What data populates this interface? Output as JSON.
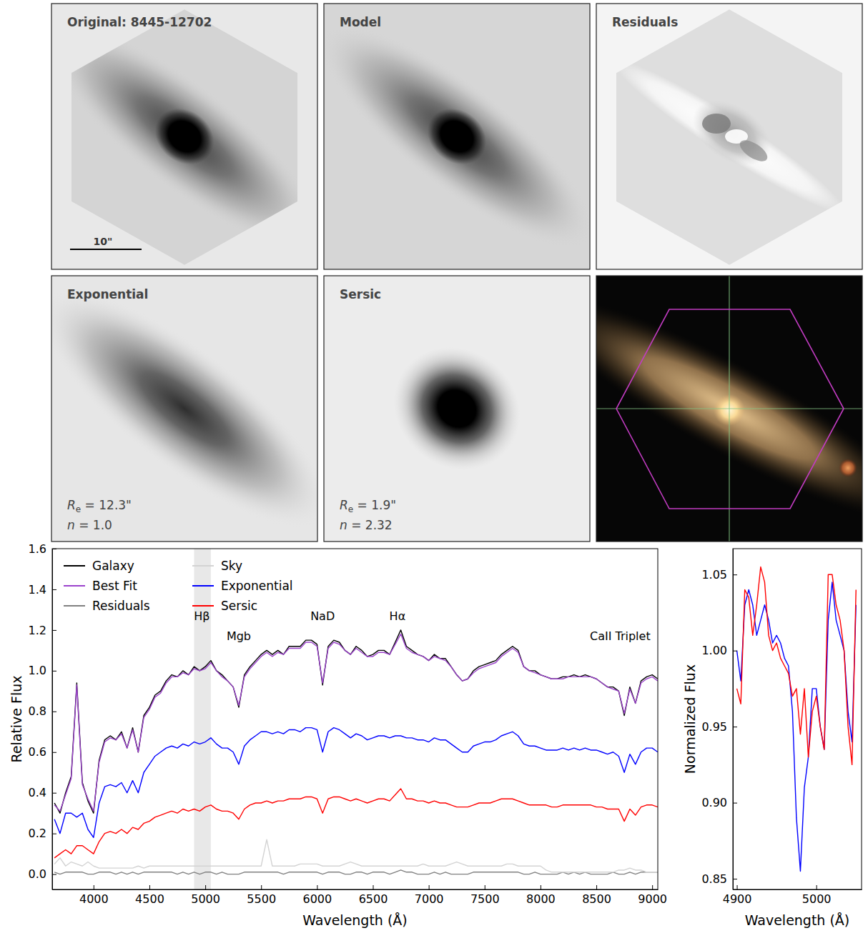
{
  "chart_data": [
    {
      "type": "image",
      "title": "Original: 8445-12702",
      "scale_bar": {
        "label": "10\""
      }
    },
    {
      "type": "image",
      "title": "Model"
    },
    {
      "type": "image",
      "title": "Residuals"
    },
    {
      "type": "image",
      "title": "Exponential",
      "annotations": [
        "Re = 12.3\"",
        "n = 1.0"
      ]
    },
    {
      "type": "image",
      "title": "Sersic",
      "annotations": [
        "Re = 1.9\"",
        "n = 2.32"
      ]
    },
    {
      "type": "image"
    },
    {
      "type": "line",
      "x_label": "Wavelength (Å)",
      "y_label": "Relative Flux",
      "xlim": [
        3630,
        9050
      ],
      "ylim": [
        -0.075,
        1.6
      ],
      "xticks": [
        4000,
        4500,
        5000,
        5500,
        6000,
        6500,
        7000,
        7500,
        8000,
        8500,
        9000
      ],
      "yticks": [
        {
          "value": 0,
          "label": "0.0"
        },
        0.2,
        0.4,
        0.6,
        0.8,
        {
          "value": 1,
          "label": "1.0"
        },
        1.2,
        1.4,
        1.6
      ],
      "legend": "upper left",
      "highlight": [
        4900,
        5050
      ],
      "annotations": [
        {
          "text": "Hβ",
          "x": 4970,
          "y": 1.27
        },
        {
          "text": "Mgb",
          "x": 5300,
          "y": 1.17
        },
        {
          "text": "NaD",
          "x": 6050,
          "y": 1.27
        },
        {
          "text": "Hα",
          "x": 6720,
          "y": 1.27
        },
        {
          "text": "CaII Triplet",
          "x": 8713,
          "y": 1.17
        }
      ],
      "x": [
        3650,
        3700,
        3750,
        3800,
        3850,
        3900,
        3950,
        4000,
        4050,
        4100,
        4150,
        4200,
        4250,
        4300,
        4350,
        4400,
        4450,
        4500,
        4550,
        4600,
        4650,
        4700,
        4750,
        4800,
        4850,
        4900,
        4950,
        5000,
        5050,
        5100,
        5150,
        5200,
        5250,
        5300,
        5350,
        5400,
        5450,
        5500,
        5550,
        5600,
        5650,
        5700,
        5750,
        5800,
        5850,
        5900,
        5950,
        6000,
        6050,
        6100,
        6150,
        6200,
        6250,
        6300,
        6350,
        6400,
        6450,
        6500,
        6550,
        6600,
        6650,
        6700,
        6750,
        6800,
        6850,
        6900,
        6950,
        7000,
        7050,
        7100,
        7150,
        7200,
        7250,
        7300,
        7350,
        7400,
        7450,
        7500,
        7550,
        7600,
        7650,
        7700,
        7750,
        7800,
        7850,
        7900,
        7950,
        8000,
        8050,
        8100,
        8150,
        8200,
        8250,
        8300,
        8350,
        8400,
        8450,
        8500,
        8550,
        8600,
        8650,
        8700,
        8750,
        8800,
        8850,
        8900,
        8950,
        9000,
        9050
      ],
      "series": [
        {
          "name": "Galaxy",
          "color": "#000000",
          "values": [
            0.35,
            0.3,
            0.4,
            0.48,
            0.94,
            0.45,
            0.36,
            0.3,
            0.56,
            0.66,
            0.68,
            0.66,
            0.7,
            0.62,
            0.72,
            0.6,
            0.78,
            0.82,
            0.88,
            0.9,
            0.95,
            0.98,
            0.97,
            1.0,
            0.98,
            1.02,
            1.0,
            1.02,
            1.05,
            1.0,
            0.98,
            0.95,
            0.92,
            0.82,
            0.98,
            1.02,
            1.05,
            1.08,
            1.1,
            1.08,
            1.1,
            1.08,
            1.12,
            1.12,
            1.12,
            1.15,
            1.15,
            1.13,
            0.93,
            1.12,
            1.15,
            1.14,
            1.1,
            1.08,
            1.12,
            1.1,
            1.07,
            1.08,
            1.1,
            1.1,
            1.08,
            1.14,
            1.2,
            1.12,
            1.1,
            1.08,
            1.07,
            1.05,
            1.08,
            1.06,
            1.06,
            1.02,
            0.98,
            0.95,
            0.96,
            1.0,
            1.02,
            1.03,
            1.04,
            1.05,
            1.08,
            1.1,
            1.12,
            1.1,
            1.02,
            1.0,
            1.0,
            0.98,
            0.97,
            0.96,
            0.96,
            0.97,
            0.97,
            0.98,
            0.97,
            0.98,
            0.97,
            0.96,
            0.94,
            0.92,
            0.92,
            0.9,
            0.78,
            0.92,
            0.84,
            0.95,
            0.97,
            0.98,
            0.96
          ]
        },
        {
          "name": "Best Fit",
          "color": "#9b42cc",
          "values": [
            0.34,
            0.31,
            0.39,
            0.47,
            0.93,
            0.44,
            0.37,
            0.31,
            0.55,
            0.65,
            0.67,
            0.66,
            0.69,
            0.62,
            0.71,
            0.6,
            0.77,
            0.81,
            0.87,
            0.89,
            0.94,
            0.97,
            0.97,
            0.99,
            0.98,
            1.01,
            1.0,
            1.01,
            1.04,
            1.0,
            0.97,
            0.95,
            0.92,
            0.83,
            0.97,
            1.01,
            1.04,
            1.07,
            1.09,
            1.07,
            1.09,
            1.08,
            1.11,
            1.11,
            1.11,
            1.14,
            1.14,
            1.12,
            0.94,
            1.11,
            1.14,
            1.13,
            1.1,
            1.08,
            1.11,
            1.09,
            1.07,
            1.07,
            1.09,
            1.09,
            1.08,
            1.13,
            1.18,
            1.11,
            1.09,
            1.08,
            1.07,
            1.05,
            1.07,
            1.06,
            1.05,
            1.02,
            0.98,
            0.95,
            0.96,
            0.99,
            1.01,
            1.02,
            1.03,
            1.04,
            1.07,
            1.09,
            1.11,
            1.09,
            1.02,
            1.0,
            0.99,
            0.98,
            0.97,
            0.96,
            0.96,
            0.96,
            0.97,
            0.97,
            0.97,
            0.97,
            0.97,
            0.96,
            0.94,
            0.92,
            0.91,
            0.9,
            0.79,
            0.91,
            0.84,
            0.94,
            0.96,
            0.97,
            0.95
          ]
        },
        {
          "name": "Residuals",
          "color": "#808080",
          "values": [
            0.01,
            0.0,
            0.01,
            0.01,
            0.01,
            0.01,
            0.0,
            0.0,
            0.01,
            0.01,
            0.01,
            0.0,
            0.01,
            0.0,
            0.01,
            0.0,
            0.01,
            0.01,
            0.01,
            0.01,
            0.01,
            0.01,
            0.0,
            0.01,
            0.0,
            0.01,
            0.0,
            0.01,
            0.01,
            0.0,
            0.01,
            0.0,
            0.0,
            0.0,
            0.01,
            0.01,
            0.01,
            0.01,
            0.01,
            0.01,
            0.01,
            0.0,
            0.01,
            0.01,
            0.01,
            0.01,
            0.01,
            0.01,
            0.0,
            0.01,
            0.01,
            0.01,
            0.0,
            0.0,
            0.01,
            0.01,
            0.0,
            0.01,
            0.01,
            0.01,
            0.0,
            0.01,
            0.02,
            0.01,
            0.01,
            0.0,
            0.0,
            0.0,
            0.01,
            0.0,
            0.01,
            0.0,
            0.0,
            0.0,
            0.0,
            0.01,
            0.01,
            0.01,
            0.01,
            0.01,
            0.01,
            0.01,
            0.01,
            0.01,
            0.0,
            0.0,
            0.01,
            0.0,
            0.0,
            0.0,
            0.0,
            0.01,
            0.0,
            0.01,
            0.0,
            0.01,
            0.0,
            0.0,
            0.0,
            0.0,
            0.01,
            0.0,
            0.0,
            0.01,
            0.0,
            0.01,
            0.01,
            0.01,
            0.01
          ]
        },
        {
          "name": "Sky",
          "color": "#d3d3d3",
          "values": [
            0.05,
            0.08,
            0.04,
            0.06,
            0.05,
            0.04,
            0.06,
            0.04,
            0.03,
            0.03,
            0.03,
            0.03,
            0.03,
            0.03,
            0.03,
            0.04,
            0.03,
            0.04,
            0.04,
            0.04,
            0.04,
            0.04,
            0.04,
            0.04,
            0.04,
            0.04,
            0.04,
            0.04,
            0.04,
            0.04,
            0.04,
            0.04,
            0.04,
            0.04,
            0.04,
            0.04,
            0.04,
            0.04,
            0.17,
            0.04,
            0.04,
            0.04,
            0.04,
            0.04,
            0.05,
            0.05,
            0.05,
            0.05,
            0.04,
            0.04,
            0.04,
            0.04,
            0.05,
            0.06,
            0.05,
            0.04,
            0.04,
            0.04,
            0.04,
            0.04,
            0.04,
            0.04,
            0.04,
            0.04,
            0.04,
            0.04,
            0.05,
            0.04,
            0.04,
            0.04,
            0.04,
            0.05,
            0.06,
            0.05,
            0.04,
            0.04,
            0.04,
            0.04,
            0.04,
            0.04,
            0.04,
            0.05,
            0.05,
            0.04,
            0.04,
            0.04,
            0.04,
            0.04,
            0.02,
            0.01,
            0.01,
            0.01,
            0.01,
            0.01,
            0.01,
            0.01,
            0.01,
            0.01,
            0.01,
            0.01,
            0.01,
            0.02,
            0.02,
            0.03,
            0.02,
            0.02,
            0.01,
            0.01,
            0.01
          ]
        },
        {
          "name": "Exponential",
          "color": "#0000ff",
          "values": [
            0.27,
            0.2,
            0.3,
            0.3,
            0.28,
            0.3,
            0.22,
            0.18,
            0.35,
            0.43,
            0.44,
            0.43,
            0.45,
            0.4,
            0.46,
            0.4,
            0.5,
            0.54,
            0.58,
            0.6,
            0.62,
            0.63,
            0.62,
            0.64,
            0.63,
            0.65,
            0.64,
            0.65,
            0.67,
            0.64,
            0.62,
            0.62,
            0.6,
            0.54,
            0.63,
            0.66,
            0.68,
            0.7,
            0.7,
            0.69,
            0.7,
            0.69,
            0.71,
            0.71,
            0.7,
            0.72,
            0.72,
            0.71,
            0.6,
            0.7,
            0.72,
            0.71,
            0.69,
            0.67,
            0.69,
            0.68,
            0.66,
            0.67,
            0.68,
            0.68,
            0.67,
            0.68,
            0.68,
            0.67,
            0.67,
            0.66,
            0.66,
            0.65,
            0.67,
            0.66,
            0.66,
            0.64,
            0.62,
            0.6,
            0.6,
            0.63,
            0.64,
            0.65,
            0.65,
            0.66,
            0.68,
            0.69,
            0.7,
            0.68,
            0.64,
            0.63,
            0.63,
            0.62,
            0.61,
            0.61,
            0.61,
            0.62,
            0.61,
            0.62,
            0.61,
            0.62,
            0.61,
            0.61,
            0.6,
            0.59,
            0.6,
            0.58,
            0.5,
            0.59,
            0.54,
            0.6,
            0.62,
            0.62,
            0.6
          ]
        },
        {
          "name": "Sersic",
          "color": "#ff0000",
          "values": [
            0.08,
            0.1,
            0.12,
            0.1,
            0.14,
            0.14,
            0.12,
            0.1,
            0.16,
            0.2,
            0.21,
            0.2,
            0.22,
            0.2,
            0.23,
            0.22,
            0.25,
            0.26,
            0.28,
            0.29,
            0.3,
            0.31,
            0.3,
            0.32,
            0.31,
            0.32,
            0.31,
            0.33,
            0.34,
            0.32,
            0.31,
            0.31,
            0.3,
            0.27,
            0.32,
            0.34,
            0.35,
            0.35,
            0.36,
            0.35,
            0.36,
            0.36,
            0.37,
            0.37,
            0.37,
            0.38,
            0.38,
            0.37,
            0.3,
            0.37,
            0.38,
            0.38,
            0.37,
            0.36,
            0.37,
            0.36,
            0.35,
            0.36,
            0.37,
            0.37,
            0.36,
            0.39,
            0.42,
            0.37,
            0.37,
            0.36,
            0.36,
            0.35,
            0.36,
            0.35,
            0.35,
            0.34,
            0.33,
            0.33,
            0.33,
            0.34,
            0.35,
            0.35,
            0.35,
            0.36,
            0.37,
            0.37,
            0.37,
            0.36,
            0.35,
            0.34,
            0.34,
            0.34,
            0.34,
            0.33,
            0.33,
            0.34,
            0.34,
            0.34,
            0.34,
            0.34,
            0.34,
            0.33,
            0.33,
            0.32,
            0.32,
            0.32,
            0.26,
            0.32,
            0.29,
            0.33,
            0.34,
            0.34,
            0.33
          ]
        }
      ]
    },
    {
      "type": "line",
      "x_label": "Wavelength (Å)",
      "y_label": "Normalized Flux",
      "xlim": [
        4895,
        5057
      ],
      "ylim": [
        0.843,
        1.067
      ],
      "xticks": [
        4900,
        5000
      ],
      "yticks": [
        0.85,
        {
          "value": 0.9,
          "label": "0.90"
        },
        0.95,
        {
          "value": 1,
          "label": "1.00"
        },
        1.05
      ],
      "x": [
        4900,
        4905,
        4910,
        4915,
        4920,
        4925,
        4930,
        4935,
        4940,
        4945,
        4950,
        4955,
        4960,
        4965,
        4970,
        4975,
        4980,
        4985,
        4990,
        4995,
        5000,
        5005,
        5010,
        5015,
        5020,
        5025,
        5030,
        5035,
        5040,
        5045,
        5050
      ],
      "series": [
        {
          "color": "#0000ff",
          "values": [
            1.0,
            0.98,
            1.03,
            1.04,
            1.03,
            1.01,
            1.02,
            1.03,
            1.02,
            1.005,
            1.01,
            1.005,
            0.995,
            0.99,
            0.96,
            0.89,
            0.855,
            0.91,
            0.93,
            0.975,
            0.975,
            0.95,
            0.935,
            1.02,
            1.045,
            1.02,
            1.01,
            1.0,
            0.96,
            0.94,
            1.03
          ]
        },
        {
          "color": "#ff0000",
          "values": [
            0.975,
            0.965,
            1.04,
            1.035,
            1.01,
            1.03,
            1.055,
            1.045,
            1.01,
            1.0,
            1.005,
            0.995,
            0.99,
            0.985,
            0.97,
            0.975,
            0.945,
            0.975,
            0.93,
            0.96,
            0.97,
            0.95,
            0.935,
            1.05,
            1.05,
            1.03,
            1.02,
            1.0,
            0.95,
            0.925,
            1.04
          ]
        }
      ]
    }
  ]
}
